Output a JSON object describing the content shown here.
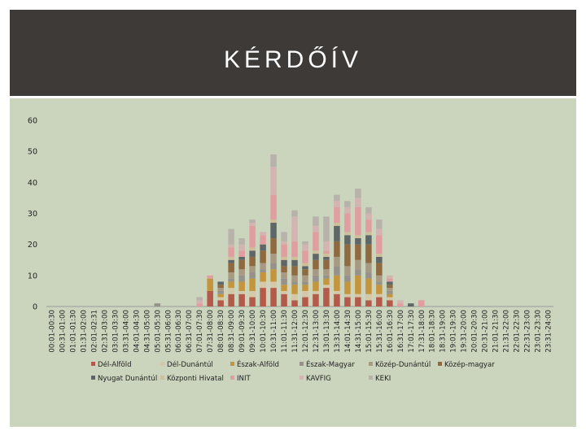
{
  "slide": {
    "title": "KÉRDŐÍV"
  },
  "chart_data": {
    "type": "bar",
    "stacked": true,
    "title": "",
    "xlabel": "",
    "ylabel": "",
    "ylim": [
      0,
      60
    ],
    "y_ticks": [
      0,
      10,
      20,
      30,
      40,
      50,
      60
    ],
    "grid": false,
    "legend_position": "bottom",
    "categories": [
      "00:01-00:30",
      "00:31-01:00",
      "01:01-01:30",
      "01:31-02:00",
      "02:01-02:31",
      "02:31-03:00",
      "03:01-03:30",
      "03:31-04:00",
      "04:01-04:30",
      "04:31-05:00",
      "05:01-05:30",
      "05:31-06:00",
      "06:01-06:30",
      "06:31-07:00",
      "07:01-07:30",
      "07:31-08:00",
      "08:01-08:30",
      "08:31-09:00",
      "09:01-09:30",
      "09:31-10:00",
      "10:01-10:30",
      "10:31-11:00",
      "11:01-11:30",
      "11:31-12:00",
      "12:01-12:30",
      "12:31-13:00",
      "13:01-13:30",
      "13:31-14:00",
      "14:01-14:30",
      "14:31-15:00",
      "15:01-15:30",
      "15:31-16:00",
      "16:01-16:30",
      "16:31-17:00",
      "17:01-17:30",
      "17:31-18:00",
      "18:01-18:30",
      "18:31-19:00",
      "19:01-19:30",
      "19:31-20:00",
      "20:01-20:30",
      "20:31-21:00",
      "21:01-21:30",
      "21:31-22:00",
      "22:01-22:30",
      "22:31-23:00",
      "23:01-23:30",
      "23:31-24:00"
    ],
    "series": [
      {
        "name": "Dél-Alföld",
        "color": "#b45a4a",
        "values": [
          0,
          0,
          0,
          0,
          0,
          0,
          0,
          0,
          0,
          0,
          0,
          0,
          0,
          0,
          0,
          5,
          2,
          4,
          4,
          3,
          6,
          6,
          4,
          2,
          3,
          4,
          6,
          4,
          3,
          3,
          2,
          3,
          2,
          0,
          0,
          0,
          0,
          0,
          0,
          0,
          0,
          0,
          0,
          0,
          0,
          0,
          0,
          0
        ]
      },
      {
        "name": "Dél-Dunántúl",
        "color": "#d5c7a7",
        "values": [
          0,
          0,
          0,
          0,
          0,
          0,
          0,
          0,
          0,
          0,
          0,
          0,
          0,
          0,
          0,
          0,
          1,
          2,
          1,
          2,
          2,
          2,
          1,
          2,
          2,
          1,
          1,
          1,
          1,
          1,
          2,
          1,
          1,
          0,
          0,
          0,
          0,
          0,
          0,
          0,
          0,
          0,
          0,
          0,
          0,
          0,
          0,
          0
        ]
      },
      {
        "name": "Észak-Alföld",
        "color": "#c4953c",
        "values": [
          0,
          0,
          0,
          0,
          0,
          0,
          0,
          0,
          0,
          0,
          0,
          0,
          0,
          0,
          0,
          4,
          1,
          2,
          3,
          4,
          3,
          4,
          2,
          3,
          2,
          3,
          2,
          5,
          4,
          6,
          5,
          3,
          1,
          0,
          0,
          0,
          0,
          0,
          0,
          0,
          0,
          0,
          0,
          0,
          0,
          0,
          0,
          0
        ]
      },
      {
        "name": "Észak-Magyar",
        "color": "#96918a",
        "values": [
          0,
          0,
          0,
          0,
          0,
          0,
          0,
          0,
          0,
          0,
          1,
          0,
          0,
          0,
          0,
          0,
          1,
          1,
          2,
          2,
          1,
          2,
          2,
          1,
          1,
          2,
          1,
          3,
          2,
          2,
          2,
          1,
          1,
          0,
          0,
          0,
          0,
          0,
          0,
          0,
          0,
          0,
          0,
          0,
          0,
          0,
          0,
          0
        ]
      },
      {
        "name": "Közép-Dunántúl",
        "color": "#a89a82",
        "values": [
          0,
          0,
          0,
          0,
          0,
          0,
          0,
          0,
          0,
          0,
          0,
          0,
          0,
          0,
          0,
          0,
          1,
          2,
          2,
          2,
          2,
          3,
          2,
          2,
          2,
          2,
          2,
          3,
          3,
          3,
          3,
          2,
          1,
          0,
          0,
          0,
          0,
          0,
          0,
          0,
          0,
          0,
          0,
          0,
          0,
          0,
          0,
          0
        ]
      },
      {
        "name": "Közép-magyar",
        "color": "#8f6a40",
        "values": [
          0,
          0,
          0,
          0,
          0,
          0,
          0,
          0,
          0,
          0,
          0,
          0,
          0,
          0,
          0,
          0,
          1,
          3,
          3,
          3,
          4,
          5,
          2,
          3,
          2,
          3,
          3,
          5,
          7,
          5,
          6,
          4,
          1,
          0,
          0,
          0,
          0,
          0,
          0,
          0,
          0,
          0,
          0,
          0,
          0,
          0,
          0,
          0
        ]
      },
      {
        "name": "Nyugat Dunántúl",
        "color": "#5e6668",
        "values": [
          0,
          0,
          0,
          0,
          0,
          0,
          0,
          0,
          0,
          0,
          0,
          0,
          0,
          0,
          0,
          0,
          1,
          1,
          1,
          2,
          2,
          5,
          2,
          2,
          1,
          2,
          1,
          5,
          3,
          2,
          3,
          2,
          1,
          0,
          1,
          0,
          0,
          0,
          0,
          0,
          0,
          0,
          0,
          0,
          0,
          0,
          0,
          0
        ]
      },
      {
        "name": "Központi Hivatal",
        "color": "#cfc09a",
        "values": [
          0,
          0,
          0,
          0,
          0,
          0,
          0,
          0,
          0,
          0,
          0,
          0,
          0,
          0,
          0,
          0,
          0,
          1,
          0,
          1,
          0,
          1,
          1,
          1,
          1,
          1,
          1,
          1,
          1,
          1,
          1,
          1,
          0,
          0,
          0,
          0,
          0,
          0,
          0,
          0,
          0,
          0,
          0,
          0,
          0,
          0,
          0,
          0
        ]
      },
      {
        "name": "INIT",
        "color": "#e09ea0",
        "values": [
          0,
          0,
          0,
          0,
          0,
          0,
          0,
          0,
          0,
          0,
          0,
          0,
          0,
          0,
          1,
          1,
          0,
          3,
          2,
          7,
          3,
          8,
          4,
          5,
          4,
          6,
          1,
          5,
          6,
          9,
          4,
          6,
          1,
          1,
          0,
          2,
          0,
          0,
          0,
          0,
          0,
          0,
          0,
          0,
          0,
          0,
          0,
          0
        ]
      },
      {
        "name": "KAVFIG",
        "color": "#d3b4b0",
        "values": [
          0,
          0,
          0,
          0,
          0,
          0,
          0,
          0,
          0,
          0,
          0,
          0,
          0,
          0,
          1,
          0,
          0,
          1,
          2,
          1,
          1,
          9,
          1,
          8,
          2,
          2,
          3,
          2,
          2,
          3,
          2,
          2,
          1,
          1,
          0,
          0,
          0,
          0,
          0,
          0,
          0,
          0,
          0,
          0,
          0,
          0,
          0,
          0
        ]
      },
      {
        "name": "KEKI",
        "color": "#b7b2aa",
        "values": [
          0,
          0,
          0,
          0,
          0,
          0,
          0,
          0,
          0,
          0,
          0,
          0,
          0,
          0,
          1,
          0,
          0,
          5,
          2,
          1,
          0,
          4,
          3,
          2,
          1,
          3,
          8,
          2,
          2,
          3,
          2,
          3,
          0,
          0,
          0,
          0,
          0,
          0,
          0,
          0,
          0,
          0,
          0,
          0,
          0,
          0,
          0,
          0
        ]
      }
    ]
  }
}
